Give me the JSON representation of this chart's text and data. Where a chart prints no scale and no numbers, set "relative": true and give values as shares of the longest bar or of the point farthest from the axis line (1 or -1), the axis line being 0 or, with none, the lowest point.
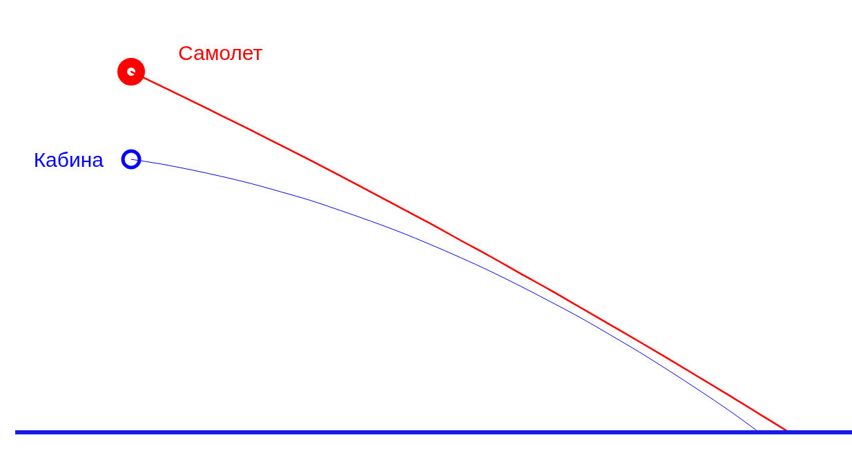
{
  "chart_data": {
    "type": "line",
    "relative": true,
    "legend": false,
    "grid": false,
    "categories": [
      null,
      null,
      null,
      null,
      null,
      null,
      null,
      null,
      null,
      null,
      null,
      null,
      null,
      null,
      null,
      null,
      null,
      null,
      null,
      null,
      null,
      null,
      null
    ],
    "series": [
      {
        "name": "Самолет",
        "color": "#ff0000",
        "values": [
          1,
          0.96,
          0.92,
          0.879,
          0.838,
          0.796,
          0.754,
          0.711,
          0.667,
          0.623,
          0.579,
          0.533,
          0.488,
          0.441,
          0.395,
          0.347,
          0.299,
          0.251,
          0.202,
          0.152,
          0.102,
          0.051,
          0
        ]
      },
      {
        "name": "Кабина",
        "color": "#0000ff",
        "values": [
          0.757,
          0.744,
          0.728,
          0.71,
          0.69,
          0.667,
          0.643,
          0.615,
          0.586,
          0.555,
          0.521,
          0.485,
          0.447,
          0.406,
          0.363,
          0.319,
          0.271,
          0.222,
          0.17,
          0.116,
          0.06,
          0,
          null
        ]
      }
    ]
  }
}
